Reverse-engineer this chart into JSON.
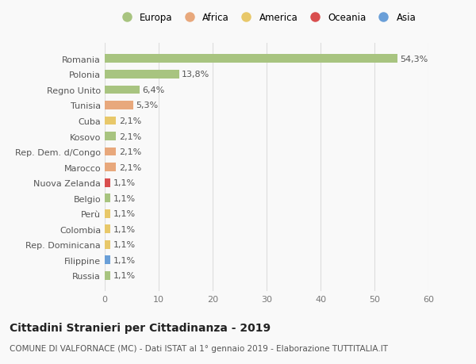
{
  "categories": [
    "Romania",
    "Polonia",
    "Regno Unito",
    "Tunisia",
    "Cuba",
    "Kosovo",
    "Rep. Dem. d/Congo",
    "Marocco",
    "Nuova Zelanda",
    "Belgio",
    "Perù",
    "Colombia",
    "Rep. Dominicana",
    "Filippine",
    "Russia"
  ],
  "values": [
    54.3,
    13.8,
    6.4,
    5.3,
    2.1,
    2.1,
    2.1,
    2.1,
    1.1,
    1.1,
    1.1,
    1.1,
    1.1,
    1.1,
    1.1
  ],
  "labels": [
    "54,3%",
    "13,8%",
    "6,4%",
    "5,3%",
    "2,1%",
    "2,1%",
    "2,1%",
    "2,1%",
    "1,1%",
    "1,1%",
    "1,1%",
    "1,1%",
    "1,1%",
    "1,1%",
    "1,1%"
  ],
  "colors": [
    "#a8c480",
    "#a8c480",
    "#a8c480",
    "#e8a87c",
    "#e8c86a",
    "#a8c480",
    "#e8a87c",
    "#e8a87c",
    "#d94f4f",
    "#a8c480",
    "#e8c86a",
    "#e8c86a",
    "#e8c86a",
    "#6a9fd8",
    "#a8c480"
  ],
  "continent_labels": [
    "Europa",
    "Africa",
    "America",
    "Oceania",
    "Asia"
  ],
  "continent_colors": [
    "#a8c480",
    "#e8a87c",
    "#e8c86a",
    "#d94f4f",
    "#6a9fd8"
  ],
  "xlim": [
    0,
    60
  ],
  "xticks": [
    0,
    10,
    20,
    30,
    40,
    50,
    60
  ],
  "title": "Cittadini Stranieri per Cittadinanza - 2019",
  "subtitle": "COMUNE DI VALFORNACE (MC) - Dati ISTAT al 1° gennaio 2019 - Elaborazione TUTTITALIA.IT",
  "background_color": "#f9f9f9",
  "bar_height": 0.55,
  "grid_color": "#dddddd",
  "label_fontsize": 8,
  "tick_fontsize": 8,
  "title_fontsize": 10,
  "subtitle_fontsize": 7.5
}
